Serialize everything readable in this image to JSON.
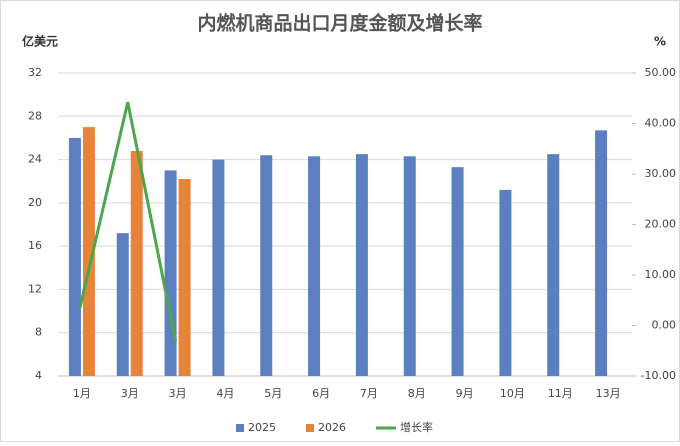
{
  "chart_data": {
    "type": "bar",
    "title": "内燃机商品出口月度金额及增长率",
    "y_label": "亿美元",
    "y2_label": "%",
    "categories": [
      "1月",
      "3月",
      "3月",
      "4月",
      "5月",
      "6月",
      "7月",
      "8月",
      "9月",
      "10月",
      "11月",
      "13月"
    ],
    "series": [
      {
        "name": "2025",
        "color": "#5b7fbf",
        "values": [
          26.0,
          17.2,
          23.0,
          24.0,
          24.4,
          24.3,
          24.5,
          24.3,
          23.3,
          21.2,
          24.5,
          26.7
        ]
      },
      {
        "name": "2026",
        "color": "#e8833a",
        "values": [
          27.0,
          24.8,
          22.2,
          null,
          null,
          null,
          null,
          null,
          null,
          null,
          null,
          null
        ]
      },
      {
        "name": "增长率",
        "color": "#4aa84a",
        "type": "line",
        "axis": "y2",
        "values": [
          3.5,
          44.2,
          -3.1,
          null,
          null,
          null,
          null,
          null,
          null,
          null,
          null,
          null
        ]
      }
    ],
    "ylim": [
      4,
      32
    ],
    "yticks": [
      4,
      8,
      12,
      16,
      20,
      24,
      28,
      32
    ],
    "y2lim": [
      -10,
      50
    ],
    "y2ticks": [
      {
        "value": -10,
        "label": "-10.00"
      },
      {
        "value": 0,
        "label": "0.00"
      },
      {
        "value": 10,
        "label": "10.00"
      },
      {
        "value": 20,
        "label": "20.00"
      },
      {
        "value": 30,
        "label": "30.00"
      },
      {
        "value": 40,
        "label": "40.00"
      },
      {
        "value": 50,
        "label": "50.00"
      }
    ],
    "grid": true
  }
}
